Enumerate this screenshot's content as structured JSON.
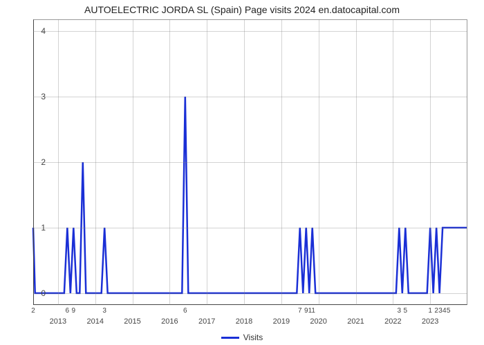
{
  "chart": {
    "type": "line",
    "title": "AUTOELECTRIC JORDA SL (Spain) Page visits 2024 en.datocapital.com",
    "title_fontsize": 14,
    "xlabel": "",
    "ylabel": "",
    "legend_label": "Visits",
    "line_color": "#1a2fd6",
    "line_width": 2.5,
    "background_color": "#ffffff",
    "grid_color": "rgba(128,128,128,0.35)",
    "plot_border_color": "#999999",
    "axis_color": "#444444",
    "font_family": "Arial",
    "y_axis": {
      "min": -0.18,
      "max": 4.18,
      "ticks": [
        0,
        1,
        2,
        3,
        4
      ],
      "tick_labels": [
        "0",
        "1",
        "2",
        "3",
        "4"
      ]
    },
    "x_axis": {
      "min": 0,
      "max": 140,
      "year_ticks": [
        {
          "pos": 8,
          "label": "2013"
        },
        {
          "pos": 20,
          "label": "2014"
        },
        {
          "pos": 32,
          "label": "2015"
        },
        {
          "pos": 44,
          "label": "2016"
        },
        {
          "pos": 56,
          "label": "2017"
        },
        {
          "pos": 68,
          "label": "2018"
        },
        {
          "pos": 80,
          "label": "2019"
        },
        {
          "pos": 92,
          "label": "2020"
        },
        {
          "pos": 104,
          "label": "2021"
        },
        {
          "pos": 116,
          "label": "2022"
        },
        {
          "pos": 128,
          "label": "2023"
        }
      ],
      "small_ticks": [
        {
          "pos": 0,
          "label": "2"
        },
        {
          "pos": 11,
          "label": "6"
        },
        {
          "pos": 13,
          "label": "9"
        },
        {
          "pos": 23,
          "label": "3"
        },
        {
          "pos": 49,
          "label": "6"
        },
        {
          "pos": 86,
          "label": "7"
        },
        {
          "pos": 88,
          "label": "9"
        },
        {
          "pos": 89.8,
          "label": "11"
        },
        {
          "pos": 118,
          "label": "3"
        },
        {
          "pos": 120,
          "label": "5"
        },
        {
          "pos": 128,
          "label": "1"
        },
        {
          "pos": 130,
          "label": "2"
        },
        {
          "pos": 131.3,
          "label": "3"
        },
        {
          "pos": 132.6,
          "label": "4"
        },
        {
          "pos": 133.9,
          "label": "5"
        }
      ]
    },
    "series": {
      "x": [
        0,
        0.6,
        1,
        10,
        11,
        12,
        12,
        13,
        14,
        15,
        16,
        17,
        18,
        22,
        23,
        24,
        48,
        49,
        50,
        85,
        86,
        87,
        87,
        88,
        89,
        89,
        90,
        91,
        117,
        118,
        119,
        119,
        120,
        121,
        127,
        128,
        129,
        129,
        130,
        131,
        131,
        132,
        133,
        140
      ],
      "y": [
        1,
        0,
        0,
        0,
        1,
        0,
        0,
        1,
        0,
        0,
        2,
        0,
        0,
        0,
        1,
        0,
        0,
        3,
        0,
        0,
        1,
        0,
        0,
        1,
        0,
        0,
        1,
        0,
        0,
        1,
        0,
        0,
        1,
        0,
        0,
        1,
        0,
        0,
        1,
        0,
        0,
        1,
        1,
        1
      ]
    }
  }
}
